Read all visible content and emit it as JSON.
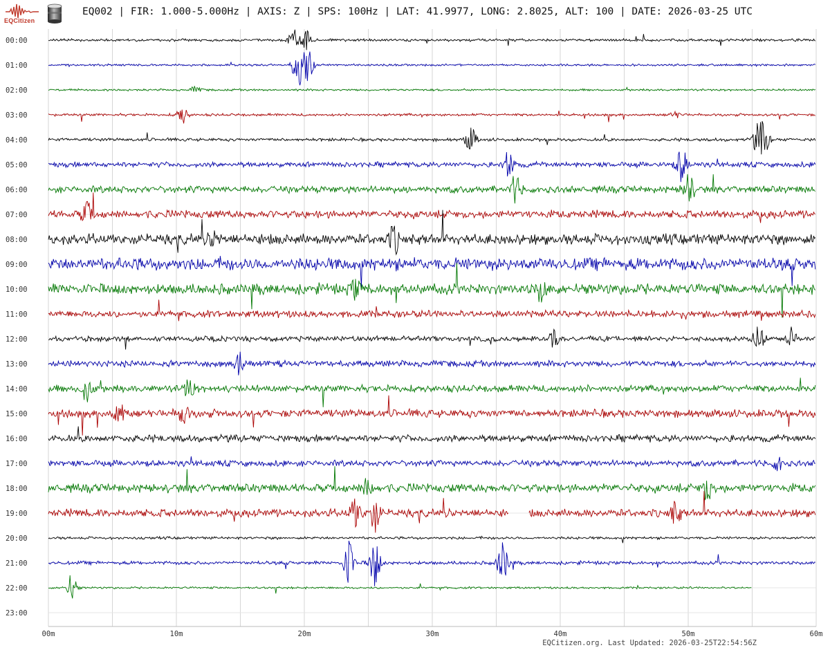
{
  "header": {
    "title": "EQ002 | FIR: 1.000-5.000Hz | AXIS: Z | SPS: 100Hz | LAT: 41.9977, LONG: 2.8025, ALT: 100 | DATE: 2026-03-25 UTC",
    "logo_text": "EQCitizen"
  },
  "footer": {
    "updated": "EQCitizen.org. Last Updated: 2026-03-25T22:54:56Z"
  },
  "chart_data": {
    "type": "line",
    "title": "",
    "rows": [
      "00:00",
      "01:00",
      "02:00",
      "03:00",
      "04:00",
      "05:00",
      "06:00",
      "07:00",
      "08:00",
      "09:00",
      "10:00",
      "11:00",
      "12:00",
      "13:00",
      "14:00",
      "15:00",
      "16:00",
      "17:00",
      "18:00",
      "19:00",
      "20:00",
      "21:00",
      "22:00",
      "23:00"
    ],
    "xticks": [
      "00m",
      "10m",
      "20m",
      "30m",
      "40m",
      "50m",
      "60m"
    ],
    "xlim": [
      0,
      60
    ],
    "grid": true,
    "palette": [
      "#000000",
      "#0000aa",
      "#007700",
      "#aa0000"
    ],
    "end_minute_last_recorded_row": 55,
    "noise_level": [
      0.15,
      0.12,
      0.12,
      0.15,
      0.18,
      0.3,
      0.4,
      0.45,
      0.6,
      0.7,
      0.6,
      0.4,
      0.3,
      0.35,
      0.4,
      0.45,
      0.4,
      0.35,
      0.5,
      0.45,
      0.15,
      0.2,
      0.12,
      0
    ],
    "bursts": [
      {
        "row": 0,
        "minute": 19.2,
        "amp": 1.0
      },
      {
        "row": 0,
        "minute": 20.2,
        "amp": 0.9
      },
      {
        "row": 1,
        "minute": 19.5,
        "amp": 2.3
      },
      {
        "row": 1,
        "minute": 20.3,
        "amp": 1.5
      },
      {
        "row": 2,
        "minute": 11.5,
        "amp": 0.3
      },
      {
        "row": 3,
        "minute": 10.5,
        "amp": 0.9
      },
      {
        "row": 3,
        "minute": 49,
        "amp": 0.3
      },
      {
        "row": 4,
        "minute": 33,
        "amp": 1.2
      },
      {
        "row": 4,
        "minute": 55.5,
        "amp": 1.6
      },
      {
        "row": 4,
        "minute": 56,
        "amp": 1.1
      },
      {
        "row": 5,
        "minute": 36,
        "amp": 1.3
      },
      {
        "row": 5,
        "minute": 49.5,
        "amp": 1.6
      },
      {
        "row": 6,
        "minute": 36.5,
        "amp": 1.3
      },
      {
        "row": 6,
        "minute": 50,
        "amp": 1.5
      },
      {
        "row": 7,
        "minute": 3,
        "amp": 1.1
      },
      {
        "row": 8,
        "minute": 13,
        "amp": 0.7
      },
      {
        "row": 8,
        "minute": 27,
        "amp": 1.2
      },
      {
        "row": 10,
        "minute": 24,
        "amp": 0.8
      },
      {
        "row": 10,
        "minute": 38.5,
        "amp": 1.0
      },
      {
        "row": 12,
        "minute": 39.5,
        "amp": 0.7
      },
      {
        "row": 12,
        "minute": 55.5,
        "amp": 1.3
      },
      {
        "row": 12,
        "minute": 58,
        "amp": 0.9
      },
      {
        "row": 13,
        "minute": 15,
        "amp": 1.2
      },
      {
        "row": 14,
        "minute": 3,
        "amp": 1.2
      },
      {
        "row": 14,
        "minute": 11,
        "amp": 0.9
      },
      {
        "row": 15,
        "minute": 5.5,
        "amp": 1.2
      },
      {
        "row": 15,
        "minute": 10.5,
        "amp": 1.0
      },
      {
        "row": 17,
        "minute": 57,
        "amp": 0.6
      },
      {
        "row": 18,
        "minute": 25,
        "amp": 0.9
      },
      {
        "row": 18,
        "minute": 51.5,
        "amp": 1.1
      },
      {
        "row": 19,
        "minute": 24,
        "amp": 1.4
      },
      {
        "row": 19,
        "minute": 25.5,
        "amp": 1.6
      },
      {
        "row": 19,
        "minute": 49,
        "amp": 1.0
      },
      {
        "row": 21,
        "minute": 23.5,
        "amp": 2.2
      },
      {
        "row": 21,
        "minute": 25.5,
        "amp": 2.3
      },
      {
        "row": 21,
        "minute": 35.5,
        "amp": 2.0
      },
      {
        "row": 22,
        "minute": 1.8,
        "amp": 1.3
      }
    ],
    "gaps": [
      {
        "row": 19,
        "from": 36,
        "to": 37.5
      }
    ]
  }
}
